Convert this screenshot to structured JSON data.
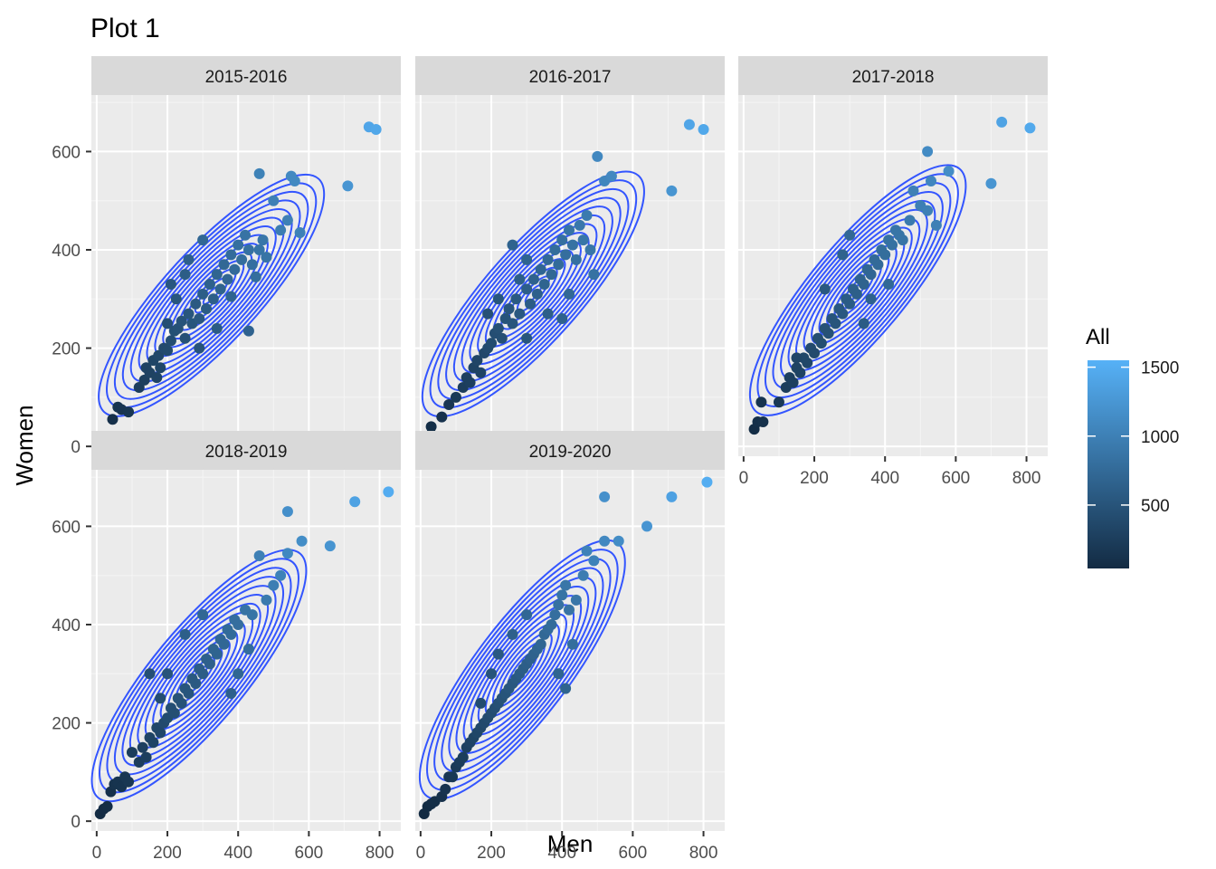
{
  "chart_data": {
    "type": "scatter",
    "title": "Plot 1",
    "xlabel": "Men",
    "ylabel": "Women",
    "xlim": [
      -15,
      860
    ],
    "ylim": [
      -20,
      715
    ],
    "x_ticks": [
      0,
      200,
      400,
      600,
      800
    ],
    "x_tick_labels": [
      "0",
      "200",
      "400",
      "600",
      "800"
    ],
    "y_ticks": [
      0,
      200,
      400,
      600
    ],
    "y_tick_labels": [
      "0",
      "200",
      "400",
      "600"
    ],
    "grid": true,
    "legend": {
      "title": "All",
      "position": "right",
      "type": "colorbar",
      "range": [
        40,
        1550
      ],
      "ticks": [
        500,
        1000,
        1500
      ],
      "tick_labels": [
        "500",
        "1000",
        "1500"
      ],
      "low_color": "#132B43",
      "high_color": "#56B1F7"
    },
    "contour_color": "#3355FF",
    "facets": [
      {
        "label": "2015-2016",
        "points": [
          [
            30,
            20
          ],
          [
            45,
            55
          ],
          [
            60,
            80
          ],
          [
            70,
            75
          ],
          [
            90,
            70
          ],
          [
            120,
            120
          ],
          [
            135,
            135
          ],
          [
            140,
            160
          ],
          [
            150,
            150
          ],
          [
            160,
            175
          ],
          [
            170,
            140
          ],
          [
            175,
            185
          ],
          [
            180,
            160
          ],
          [
            190,
            200
          ],
          [
            200,
            195
          ],
          [
            210,
            215
          ],
          [
            220,
            235
          ],
          [
            230,
            240
          ],
          [
            240,
            255
          ],
          [
            250,
            220
          ],
          [
            260,
            270
          ],
          [
            270,
            250
          ],
          [
            280,
            290
          ],
          [
            290,
            260
          ],
          [
            300,
            310
          ],
          [
            310,
            280
          ],
          [
            320,
            330
          ],
          [
            330,
            300
          ],
          [
            340,
            350
          ],
          [
            350,
            320
          ],
          [
            360,
            370
          ],
          [
            370,
            340
          ],
          [
            380,
            390
          ],
          [
            390,
            360
          ],
          [
            400,
            410
          ],
          [
            410,
            380
          ],
          [
            420,
            430
          ],
          [
            430,
            400
          ],
          [
            440,
            370
          ],
          [
            450,
            345
          ],
          [
            460,
            400
          ],
          [
            470,
            420
          ],
          [
            480,
            385
          ],
          [
            500,
            500
          ],
          [
            520,
            440
          ],
          [
            540,
            460
          ],
          [
            550,
            550
          ],
          [
            560,
            540
          ],
          [
            575,
            435
          ],
          [
            460,
            555
          ],
          [
            300,
            420
          ],
          [
            260,
            380
          ],
          [
            250,
            350
          ],
          [
            225,
            300
          ],
          [
            200,
            250
          ],
          [
            210,
            330
          ],
          [
            340,
            240
          ],
          [
            430,
            235
          ],
          [
            380,
            305
          ],
          [
            290,
            200
          ],
          [
            710,
            530
          ],
          [
            770,
            650
          ],
          [
            790,
            645
          ]
        ]
      },
      {
        "label": "2016-2017",
        "points": [
          [
            30,
            25
          ],
          [
            30,
            40
          ],
          [
            60,
            60
          ],
          [
            80,
            85
          ],
          [
            100,
            100
          ],
          [
            120,
            120
          ],
          [
            130,
            140
          ],
          [
            140,
            130
          ],
          [
            150,
            160
          ],
          [
            160,
            175
          ],
          [
            170,
            150
          ],
          [
            180,
            190
          ],
          [
            190,
            200
          ],
          [
            200,
            210
          ],
          [
            210,
            230
          ],
          [
            220,
            240
          ],
          [
            230,
            220
          ],
          [
            240,
            260
          ],
          [
            250,
            280
          ],
          [
            260,
            250
          ],
          [
            270,
            300
          ],
          [
            280,
            270
          ],
          [
            300,
            320
          ],
          [
            310,
            290
          ],
          [
            320,
            340
          ],
          [
            330,
            310
          ],
          [
            340,
            360
          ],
          [
            350,
            330
          ],
          [
            360,
            380
          ],
          [
            370,
            350
          ],
          [
            380,
            400
          ],
          [
            390,
            370
          ],
          [
            400,
            420
          ],
          [
            410,
            390
          ],
          [
            420,
            440
          ],
          [
            430,
            410
          ],
          [
            440,
            380
          ],
          [
            450,
            450
          ],
          [
            460,
            420
          ],
          [
            470,
            470
          ],
          [
            480,
            400
          ],
          [
            490,
            350
          ],
          [
            500,
            590
          ],
          [
            520,
            540
          ],
          [
            540,
            550
          ],
          [
            300,
            380
          ],
          [
            280,
            340
          ],
          [
            260,
            410
          ],
          [
            220,
            300
          ],
          [
            190,
            270
          ],
          [
            300,
            220
          ],
          [
            400,
            260
          ],
          [
            420,
            310
          ],
          [
            360,
            270
          ],
          [
            710,
            520
          ],
          [
            760,
            655
          ],
          [
            800,
            645
          ]
        ]
      },
      {
        "label": "2017-2018",
        "points": [
          [
            30,
            35
          ],
          [
            40,
            50
          ],
          [
            55,
            50
          ],
          [
            50,
            90
          ],
          [
            100,
            90
          ],
          [
            120,
            120
          ],
          [
            130,
            140
          ],
          [
            140,
            130
          ],
          [
            150,
            160
          ],
          [
            160,
            150
          ],
          [
            170,
            180
          ],
          [
            180,
            170
          ],
          [
            190,
            200
          ],
          [
            200,
            190
          ],
          [
            210,
            220
          ],
          [
            220,
            210
          ],
          [
            230,
            240
          ],
          [
            240,
            230
          ],
          [
            250,
            260
          ],
          [
            260,
            250
          ],
          [
            270,
            280
          ],
          [
            280,
            270
          ],
          [
            290,
            300
          ],
          [
            300,
            290
          ],
          [
            310,
            320
          ],
          [
            320,
            310
          ],
          [
            330,
            340
          ],
          [
            340,
            330
          ],
          [
            350,
            360
          ],
          [
            360,
            350
          ],
          [
            370,
            380
          ],
          [
            380,
            370
          ],
          [
            390,
            400
          ],
          [
            400,
            390
          ],
          [
            410,
            420
          ],
          [
            420,
            410
          ],
          [
            430,
            440
          ],
          [
            440,
            430
          ],
          [
            450,
            420
          ],
          [
            470,
            460
          ],
          [
            480,
            520
          ],
          [
            500,
            490
          ],
          [
            520,
            480
          ],
          [
            530,
            540
          ],
          [
            545,
            450
          ],
          [
            520,
            600
          ],
          [
            580,
            560
          ],
          [
            300,
            430
          ],
          [
            280,
            390
          ],
          [
            340,
            250
          ],
          [
            410,
            330
          ],
          [
            360,
            300
          ],
          [
            230,
            320
          ],
          [
            150,
            180
          ],
          [
            700,
            535
          ],
          [
            730,
            660
          ],
          [
            810,
            648
          ]
        ]
      },
      {
        "label": "2018-2019",
        "points": [
          [
            10,
            15
          ],
          [
            20,
            25
          ],
          [
            30,
            30
          ],
          [
            40,
            60
          ],
          [
            50,
            75
          ],
          [
            60,
            80
          ],
          [
            70,
            70
          ],
          [
            80,
            90
          ],
          [
            90,
            80
          ],
          [
            100,
            140
          ],
          [
            120,
            120
          ],
          [
            130,
            150
          ],
          [
            140,
            130
          ],
          [
            150,
            170
          ],
          [
            160,
            160
          ],
          [
            170,
            190
          ],
          [
            180,
            180
          ],
          [
            190,
            200
          ],
          [
            200,
            210
          ],
          [
            210,
            230
          ],
          [
            220,
            220
          ],
          [
            230,
            250
          ],
          [
            240,
            240
          ],
          [
            250,
            270
          ],
          [
            260,
            260
          ],
          [
            270,
            290
          ],
          [
            280,
            280
          ],
          [
            290,
            310
          ],
          [
            300,
            300
          ],
          [
            310,
            330
          ],
          [
            320,
            320
          ],
          [
            330,
            350
          ],
          [
            340,
            340
          ],
          [
            350,
            370
          ],
          [
            360,
            360
          ],
          [
            370,
            390
          ],
          [
            380,
            380
          ],
          [
            390,
            410
          ],
          [
            400,
            400
          ],
          [
            420,
            430
          ],
          [
            440,
            420
          ],
          [
            460,
            540
          ],
          [
            480,
            450
          ],
          [
            500,
            480
          ],
          [
            520,
            500
          ],
          [
            540,
            545
          ],
          [
            540,
            630
          ],
          [
            580,
            570
          ],
          [
            300,
            420
          ],
          [
            250,
            380
          ],
          [
            200,
            300
          ],
          [
            180,
            250
          ],
          [
            150,
            300
          ],
          [
            400,
            300
          ],
          [
            430,
            350
          ],
          [
            380,
            260
          ],
          [
            660,
            560
          ],
          [
            730,
            650
          ],
          [
            825,
            670
          ]
        ]
      },
      {
        "label": "2019-2020",
        "points": [
          [
            10,
            15
          ],
          [
            20,
            30
          ],
          [
            30,
            35
          ],
          [
            40,
            40
          ],
          [
            60,
            50
          ],
          [
            70,
            65
          ],
          [
            80,
            90
          ],
          [
            90,
            90
          ],
          [
            100,
            110
          ],
          [
            110,
            120
          ],
          [
            120,
            130
          ],
          [
            130,
            150
          ],
          [
            140,
            160
          ],
          [
            150,
            170
          ],
          [
            160,
            180
          ],
          [
            170,
            190
          ],
          [
            180,
            200
          ],
          [
            190,
            210
          ],
          [
            200,
            220
          ],
          [
            210,
            230
          ],
          [
            220,
            240
          ],
          [
            230,
            250
          ],
          [
            240,
            260
          ],
          [
            250,
            270
          ],
          [
            260,
            280
          ],
          [
            270,
            290
          ],
          [
            280,
            300
          ],
          [
            290,
            310
          ],
          [
            300,
            320
          ],
          [
            310,
            330
          ],
          [
            320,
            340
          ],
          [
            330,
            350
          ],
          [
            340,
            360
          ],
          [
            350,
            380
          ],
          [
            360,
            390
          ],
          [
            370,
            400
          ],
          [
            380,
            420
          ],
          [
            390,
            440
          ],
          [
            400,
            460
          ],
          [
            410,
            480
          ],
          [
            420,
            430
          ],
          [
            440,
            450
          ],
          [
            460,
            500
          ],
          [
            470,
            550
          ],
          [
            490,
            530
          ],
          [
            520,
            570
          ],
          [
            520,
            660
          ],
          [
            560,
            570
          ],
          [
            300,
            420
          ],
          [
            260,
            380
          ],
          [
            220,
            340
          ],
          [
            200,
            300
          ],
          [
            170,
            240
          ],
          [
            390,
            300
          ],
          [
            430,
            360
          ],
          [
            410,
            270
          ],
          [
            640,
            600
          ],
          [
            710,
            660
          ],
          [
            810,
            690
          ]
        ]
      }
    ]
  }
}
